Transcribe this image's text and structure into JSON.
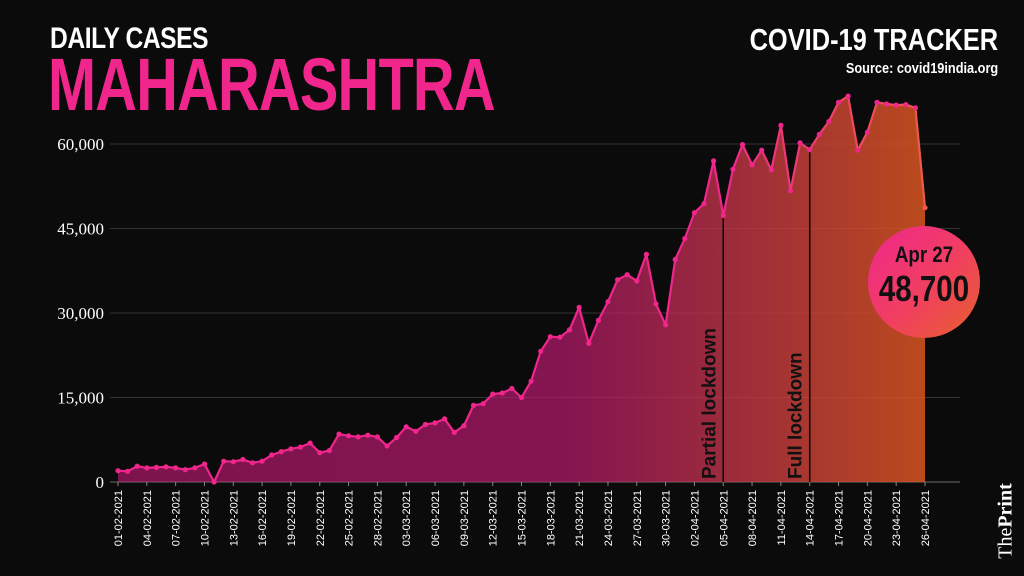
{
  "header": {
    "subtitle": "DAILY CASES",
    "title": "MAHARASHTRA",
    "tracker": "COVID-19 TRACKER",
    "source": "Source: covid19india.org",
    "brand_prefix": "The",
    "brand_name": "Print"
  },
  "callout": {
    "date": "Apr 27",
    "value": "48,700"
  },
  "colors": {
    "accent": "#f0268d",
    "end": "#e8602c",
    "background": "#0c0b0c"
  },
  "chart_data": {
    "type": "area",
    "title": "MAHARASHTRA",
    "subtitle": "DAILY CASES",
    "xlabel": "",
    "ylabel": "",
    "ylim": [
      0,
      60000
    ],
    "yticks": [
      0,
      15000,
      30000,
      45000,
      60000
    ],
    "ytick_labels": [
      "0",
      "15,000",
      "30,000",
      "45,000",
      "60,000"
    ],
    "xtick_labels": [
      "01-02-2021",
      "04-02-2021",
      "07-02-2021",
      "10-02-2021",
      "13-02-2021",
      "16-02-2021",
      "19-02-2021",
      "22-02-2021",
      "25-02-2021",
      "28-02-2021",
      "03-03-2021",
      "06-03-2021",
      "09-03-2021",
      "12-03-2021",
      "15-03-2021",
      "18-03-2021",
      "21-03-2021",
      "24-03-2021",
      "27-03-2021",
      "30-03-2021",
      "02-04-2021",
      "05-04-2021",
      "08-04-2021",
      "11-04-2021",
      "14-04-2021",
      "17-04-2021",
      "20-04-2021",
      "23-04-2021",
      "26-04-2021"
    ],
    "grid": true,
    "x_start": "01-02-2021",
    "x_end": "27-04-2021",
    "values": [
      2000,
      1900,
      2800,
      2500,
      2600,
      2700,
      2500,
      2200,
      2500,
      3200,
      0,
      3700,
      3600,
      4000,
      3400,
      3700,
      4800,
      5400,
      5900,
      6200,
      6900,
      5200,
      5600,
      8500,
      8200,
      8000,
      8300,
      8000,
      6400,
      7900,
      9800,
      9000,
      10200,
      10500,
      11200,
      8800,
      10000,
      13600,
      13900,
      15600,
      15800,
      16600,
      15000,
      17900,
      23200,
      25800,
      25700,
      27000,
      31000,
      24600,
      28700,
      32000,
      35900,
      36800,
      35700,
      40400,
      31600,
      27900,
      39500,
      43200,
      47800,
      49400,
      57000,
      47300,
      55500,
      59900,
      56300,
      58900,
      55400,
      63300,
      51700,
      60200,
      59000,
      61700,
      64000,
      67400,
      68500,
      58900,
      62100,
      67400,
      67100,
      66900,
      67000,
      66400,
      48700
    ],
    "annotations": [
      {
        "label": "Partial lockdown",
        "date": "05-04-2021"
      },
      {
        "label": "Full lockdown",
        "date": "14-04-2021"
      }
    ]
  }
}
